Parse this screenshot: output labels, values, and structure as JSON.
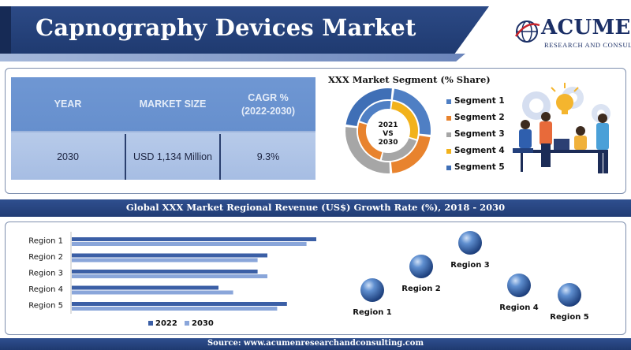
{
  "header": {
    "title": "Capnography Devices Market"
  },
  "logo": {
    "name": "ACUMEN",
    "subtitle": "RESEARCH AND CONSULTING"
  },
  "stats_table": {
    "headers": [
      "YEAR",
      "MARKET SIZE",
      "CAGR %",
      "(2022-2030)"
    ],
    "values": [
      "2030",
      "USD 1,134 Million",
      "9.3%"
    ]
  },
  "segment": {
    "title": "XXX Market Segment (% Share)",
    "center_label": [
      "2021",
      "VS",
      "2030"
    ],
    "legend": [
      "Segment 1",
      "Segment 2",
      "Segment 3",
      "Segment 4",
      "Segment 5"
    ],
    "colors": [
      "#4f7fc4",
      "#e8832e",
      "#a6a6a6",
      "#f2b21b",
      "#3f6fb6"
    ]
  },
  "banner": {
    "text": "Global XXX Market Regional Revenue (US$) Growth Rate (%), 2018 - 2030"
  },
  "chart_data": [
    {
      "type": "bar",
      "orientation": "horizontal",
      "categories": [
        "Region 1",
        "Region 2",
        "Region 3",
        "Region 4",
        "Region 5"
      ],
      "series": [
        {
          "name": "2022",
          "values": [
            10.0,
            8.0,
            7.6,
            6.0,
            8.8
          ],
          "color": "#3b5fa6"
        },
        {
          "name": "2030",
          "values": [
            9.6,
            7.6,
            8.0,
            6.6,
            8.4
          ],
          "color": "#8aa6da"
        }
      ],
      "xlim": [
        0,
        10
      ],
      "legend": "bottom"
    },
    {
      "type": "scatter",
      "categories": [
        "Region 1",
        "Region 2",
        "Region 3",
        "Region 4",
        "Region 5"
      ],
      "x": [
        1,
        2,
        3,
        4,
        5
      ],
      "y": [
        2,
        3,
        4,
        2.2,
        1.8
      ],
      "color": "#2e5fa3"
    }
  ],
  "footer": {
    "text": "Source: www.acumenresearchandconsulting.com"
  }
}
